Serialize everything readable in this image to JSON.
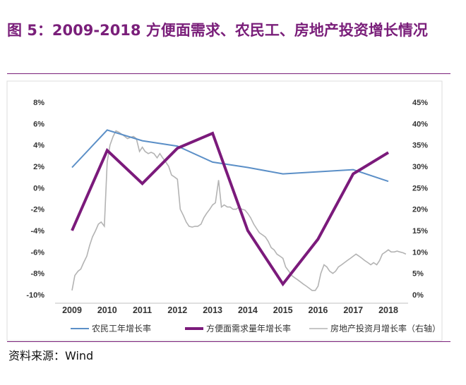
{
  "title": "图 5：2009-2018 方便面需求、农民工、房地产投资增长情况",
  "source": "资料来源：Wind",
  "chart_data": {
    "type": "line",
    "x": [
      "2009",
      "2010",
      "2011",
      "2012",
      "2013",
      "2014",
      "2015",
      "2016",
      "2017",
      "2018"
    ],
    "y_left_ticks": [
      "8%",
      "6%",
      "4%",
      "2%",
      "0%",
      "-2%",
      "-4%",
      "-6%",
      "-8%",
      "-10%"
    ],
    "y_right_ticks": [
      "45%",
      "40%",
      "35%",
      "30%",
      "25%",
      "20%",
      "15%",
      "10%",
      "5%",
      "0%"
    ],
    "ylim_left": [
      -10,
      8
    ],
    "ylim_right": [
      0,
      45
    ],
    "colors": {
      "migrant": "#5b8fc7",
      "noodle": "#7b1a7b",
      "realestate": "#b3b3b3"
    },
    "series": [
      {
        "name": "农民工年增长率",
        "axis": "left",
        "values": [
          1.9,
          5.4,
          4.4,
          3.9,
          2.4,
          1.9,
          1.3,
          1.5,
          1.7,
          0.6
        ]
      },
      {
        "name": "方便面需求量年增长率",
        "axis": "left",
        "values": [
          -4.0,
          3.5,
          0.4,
          3.7,
          5.1,
          -4.0,
          -9.0,
          -4.8,
          1.3,
          3.3
        ]
      },
      {
        "name": "房地产投资月增长率（右轴）",
        "axis": "right",
        "x": [
          2009.0,
          2009.08,
          2009.17,
          2009.25,
          2009.33,
          2009.42,
          2009.5,
          2009.58,
          2009.67,
          2009.75,
          2009.83,
          2009.92,
          2010.0,
          2010.08,
          2010.17,
          2010.25,
          2010.33,
          2010.42,
          2010.5,
          2010.58,
          2010.67,
          2010.75,
          2010.83,
          2010.92,
          2011.0,
          2011.08,
          2011.17,
          2011.25,
          2011.33,
          2011.42,
          2011.5,
          2011.58,
          2011.67,
          2011.75,
          2011.83,
          2011.92,
          2012.0,
          2012.08,
          2012.17,
          2012.25,
          2012.33,
          2012.42,
          2012.5,
          2012.58,
          2012.67,
          2012.75,
          2012.83,
          2012.92,
          2013.0,
          2013.08,
          2013.17,
          2013.25,
          2013.33,
          2013.42,
          2013.5,
          2013.58,
          2013.67,
          2013.75,
          2013.83,
          2013.92,
          2014.0,
          2014.08,
          2014.17,
          2014.25,
          2014.33,
          2014.42,
          2014.5,
          2014.58,
          2014.67,
          2014.75,
          2014.83,
          2014.92,
          2015.0,
          2015.08,
          2015.17,
          2015.25,
          2015.33,
          2015.42,
          2015.5,
          2015.58,
          2015.67,
          2015.75,
          2015.83,
          2015.92,
          2016.0,
          2016.08,
          2016.17,
          2016.25,
          2016.33,
          2016.42,
          2016.5,
          2016.58,
          2016.67,
          2016.75,
          2016.83,
          2016.92,
          2017.0,
          2017.08,
          2017.17,
          2017.25,
          2017.33,
          2017.42,
          2017.5,
          2017.58,
          2017.67,
          2017.75,
          2017.83,
          2017.92,
          2018.0,
          2018.08,
          2018.17,
          2018.25,
          2018.33,
          2018.42,
          2018.5
        ],
        "values": [
          1.0,
          4.5,
          5.5,
          6.0,
          7.5,
          9.0,
          11.5,
          13.5,
          15.0,
          16.5,
          17.0,
          16.0,
          31.0,
          35.0,
          37.0,
          38.3,
          38.0,
          37.5,
          37.0,
          36.5,
          36.8,
          37.0,
          36.5,
          33.5,
          34.5,
          33.5,
          33.0,
          33.3,
          33.0,
          32.0,
          33.0,
          32.0,
          31.0,
          30.0,
          28.0,
          27.5,
          27.0,
          20.0,
          18.5,
          17.0,
          16.0,
          15.8,
          16.0,
          16.0,
          16.5,
          18.0,
          19.0,
          20.0,
          21.0,
          21.5,
          26.8,
          20.5,
          21.0,
          20.5,
          20.5,
          20.0,
          20.0,
          20.5,
          20.0,
          19.8,
          19.0,
          18.0,
          16.5,
          15.5,
          14.5,
          14.0,
          13.5,
          12.5,
          11.0,
          10.5,
          9.5,
          9.0,
          8.5,
          6.5,
          5.5,
          4.5,
          4.0,
          3.5,
          3.0,
          2.5,
          2.0,
          1.5,
          1.0,
          1.0,
          2.0,
          5.0,
          7.0,
          6.5,
          5.5,
          5.0,
          5.5,
          6.5,
          7.0,
          7.5,
          8.0,
          8.5,
          9.0,
          9.5,
          9.0,
          8.5,
          8.0,
          7.5,
          7.0,
          7.5,
          7.0,
          8.0,
          9.5,
          10.0,
          10.5,
          10.0,
          10.0,
          10.2,
          10.0,
          9.8,
          9.5
        ]
      }
    ]
  }
}
